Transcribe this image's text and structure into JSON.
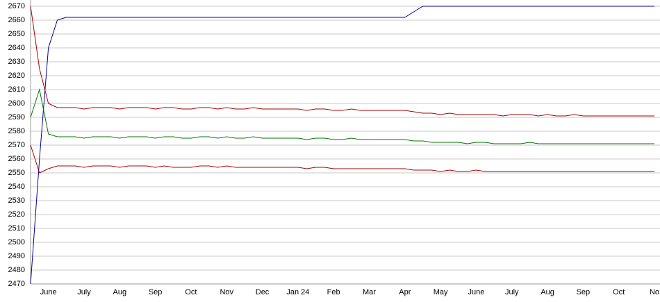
{
  "chart_data": {
    "type": "line",
    "categories": [
      null,
      null,
      "June",
      null,
      null,
      null,
      "July",
      null,
      null,
      null,
      "Aug",
      null,
      null,
      null,
      "Sep",
      null,
      null,
      null,
      "Oct",
      null,
      null,
      null,
      "Nov",
      null,
      null,
      null,
      "Dec",
      null,
      null,
      null,
      "Jan 24",
      null,
      null,
      null,
      "Feb",
      null,
      null,
      null,
      "Mar",
      null,
      null,
      null,
      "Apr",
      null,
      null,
      null,
      "May",
      null,
      null,
      null,
      "June",
      null,
      null,
      null,
      "July",
      null,
      null,
      null,
      "Aug",
      null,
      null,
      null,
      "Sep",
      null,
      null,
      null,
      "Oct",
      null,
      null,
      null,
      "No"
    ],
    "series": [
      {
        "color": "#000099",
        "values": [
          2470,
          2560,
          2640,
          2660,
          2662,
          2662,
          2662,
          2662,
          2662,
          2662,
          2662,
          2662,
          2662,
          2662,
          2662,
          2662,
          2662,
          2662,
          2662,
          2662,
          2662,
          2662,
          2662,
          2662,
          2662,
          2662,
          2662,
          2662,
          2662,
          2662,
          2662,
          2662,
          2662,
          2662,
          2662,
          2662,
          2662,
          2662,
          2662,
          2662,
          2662,
          2662,
          2662,
          2666,
          2670,
          2670,
          2670,
          2670,
          2670,
          2670,
          2670,
          2670,
          2670,
          2670,
          2670,
          2670,
          2670,
          2670,
          2670,
          2670,
          2670,
          2670,
          2670,
          2670,
          2670,
          2670,
          2670,
          2670,
          2670,
          2670,
          2670
        ]
      },
      {
        "color": "#aa0000",
        "values": [
          2670,
          2625,
          2600,
          2597,
          2597,
          2597,
          2596,
          2597,
          2597,
          2597,
          2596,
          2597,
          2597,
          2597,
          2596,
          2597,
          2597,
          2596,
          2596,
          2597,
          2597,
          2596,
          2597,
          2596,
          2596,
          2597,
          2596,
          2596,
          2596,
          2596,
          2596,
          2595,
          2596,
          2596,
          2595,
          2595,
          2596,
          2595,
          2595,
          2595,
          2595,
          2595,
          2595,
          2594,
          2593,
          2593,
          2592,
          2593,
          2592,
          2592,
          2592,
          2592,
          2592,
          2591,
          2592,
          2592,
          2592,
          2591,
          2592,
          2591,
          2591,
          2592,
          2591,
          2591,
          2591,
          2591,
          2591,
          2591,
          2591,
          2591,
          2591
        ]
      },
      {
        "color": "#007700",
        "values": [
          2590,
          2610,
          2578,
          2576,
          2576,
          2576,
          2575,
          2576,
          2576,
          2576,
          2575,
          2576,
          2576,
          2576,
          2575,
          2576,
          2576,
          2575,
          2575,
          2576,
          2576,
          2575,
          2576,
          2575,
          2575,
          2576,
          2575,
          2575,
          2575,
          2575,
          2575,
          2574,
          2575,
          2575,
          2574,
          2574,
          2575,
          2574,
          2574,
          2574,
          2574,
          2574,
          2574,
          2573,
          2573,
          2572,
          2572,
          2572,
          2572,
          2571,
          2572,
          2572,
          2571,
          2571,
          2571,
          2571,
          2572,
          2571,
          2571,
          2571,
          2571,
          2571,
          2571,
          2571,
          2571,
          2571,
          2571,
          2571,
          2571,
          2571,
          2571
        ]
      },
      {
        "color": "#aa0000",
        "values": [
          2570,
          2550,
          2553,
          2555,
          2555,
          2555,
          2554,
          2555,
          2555,
          2555,
          2554,
          2555,
          2555,
          2555,
          2554,
          2555,
          2554,
          2554,
          2554,
          2555,
          2555,
          2554,
          2555,
          2554,
          2554,
          2554,
          2554,
          2554,
          2554,
          2554,
          2554,
          2553,
          2554,
          2554,
          2553,
          2553,
          2553,
          2553,
          2553,
          2553,
          2553,
          2553,
          2553,
          2552,
          2552,
          2552,
          2551,
          2552,
          2551,
          2551,
          2552,
          2551,
          2551,
          2551,
          2551,
          2551,
          2551,
          2551,
          2551,
          2551,
          2551,
          2551,
          2551,
          2551,
          2551,
          2551,
          2551,
          2551,
          2551,
          2551,
          2551
        ]
      }
    ],
    "ylim": [
      2470,
      2670
    ],
    "yticks": [
      2470,
      2480,
      2490,
      2500,
      2510,
      2520,
      2530,
      2540,
      2550,
      2560,
      2570,
      2580,
      2590,
      2600,
      2610,
      2620,
      2630,
      2640,
      2650,
      2660,
      2670
    ],
    "grid": true
  }
}
